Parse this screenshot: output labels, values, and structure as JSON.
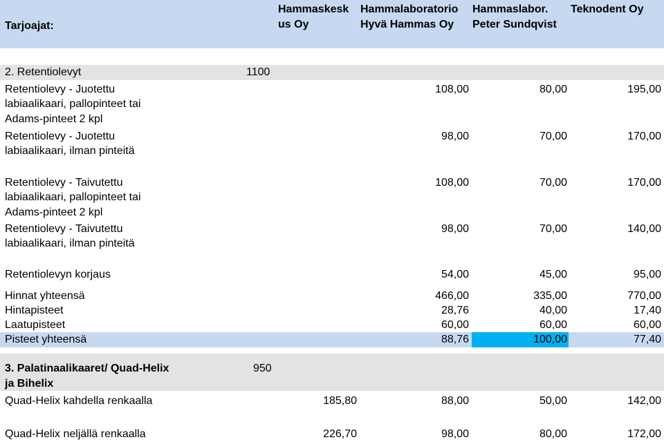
{
  "header": {
    "label": "Tarjoajat:",
    "suppliers": [
      [
        "Hammaskesk",
        "us Oy"
      ],
      [
        "Hammalaboratorio",
        "Hyvä Hammas Oy"
      ],
      [
        "Hammaslabor.",
        "Peter Sundqvist"
      ],
      [
        "Teknodent Oy"
      ]
    ]
  },
  "section2": {
    "title": "2. Retentiolevyt",
    "quantity": "1100",
    "rows": [
      {
        "label": [
          "Retentiolevy - Juotettu",
          "labiaalikaari, pallopinteet tai",
          "Adams-pinteet 2 kpl"
        ],
        "values": [
          "108,00",
          "80,00",
          "195,00"
        ]
      },
      {
        "label": [
          "Retentiolevy - Juotettu",
          "labiaalikaari, ilman pinteitä"
        ],
        "values": [
          "98,00",
          "70,00",
          "170,00"
        ]
      },
      {
        "label": [
          "Retentiolevy - Taivutettu",
          "labiaalikaari, pallopinteet tai",
          "Adams-pinteet 2 kpl"
        ],
        "values": [
          "108,00",
          "70,00",
          "170,00"
        ]
      },
      {
        "label": [
          "Retentiolevy - Taivutettu",
          "labiaalikaari, ilman pinteitä"
        ],
        "values": [
          "98,00",
          "70,00",
          "140,00"
        ]
      },
      {
        "label": [
          "Retentiolevyn korjaus"
        ],
        "values": [
          "54,00",
          "45,00",
          "95,00"
        ]
      }
    ],
    "summary": [
      {
        "label": "Hinnat yhteensä",
        "values": [
          "466,00",
          "335,00",
          "770,00"
        ]
      },
      {
        "label": "Hintapisteet",
        "values": [
          "28,76",
          "40,00",
          "17,40"
        ]
      },
      {
        "label": "Laatupisteet",
        "values": [
          "60,00",
          "60,00",
          "60,00"
        ]
      },
      {
        "label": "Pisteet yhteensä",
        "values": [
          "88,76",
          "100,00",
          "77,40"
        ]
      }
    ]
  },
  "section3": {
    "title": [
      "3. Palatinaalikaaret/ Quad-Helix",
      "ja Bihelix"
    ],
    "quantity": "950",
    "rows": [
      {
        "label": "Quad-Helix kahdella renkaalla",
        "values": [
          "185,80",
          "88,00",
          "50,00",
          "142,00"
        ]
      },
      {
        "label": "Quad-Helix neljällä renkaalla",
        "values": [
          "226,70",
          "98,00",
          "80,00",
          "172,00"
        ]
      }
    ]
  },
  "colors": {
    "header": "#c6d9f1",
    "section": "#e3e3e3",
    "highlight": "#00b0f0"
  }
}
